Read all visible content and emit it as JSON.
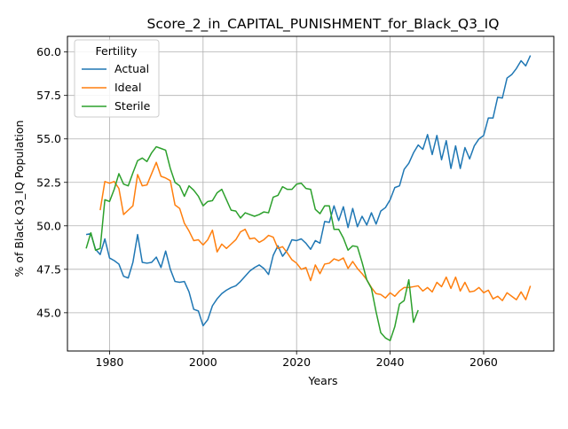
{
  "chart_data": {
    "type": "line",
    "title": "Score_2_in_CAPITAL_PUNISHMENT_for_Black_Q3_IQ",
    "xlabel": "Years",
    "ylabel": "% of Black Q3_IQ Population",
    "xlim": [
      1971,
      2075
    ],
    "ylim": [
      42.8,
      60.9
    ],
    "xticks": [
      1980,
      2000,
      2020,
      2040,
      2060
    ],
    "yticks": [
      45.0,
      47.5,
      50.0,
      52.5,
      55.0,
      57.5,
      60.0
    ],
    "grid": true,
    "legend": {
      "title": "Fertility",
      "position": "top-left"
    },
    "series": [
      {
        "name": "Actual",
        "color": "#1f77b4",
        "x": [
          1975,
          1976,
          1977,
          1978,
          1979,
          1980,
          1981,
          1982,
          1983,
          1984,
          1985,
          1986,
          1987,
          1988,
          1989,
          1990,
          1991,
          1992,
          1993,
          1994,
          1995,
          1996,
          1997,
          1998,
          1999,
          2000,
          2001,
          2002,
          2003,
          2004,
          2005,
          2006,
          2007,
          2008,
          2009,
          2010,
          2011,
          2012,
          2013,
          2014,
          2015,
          2016,
          2017,
          2018,
          2019,
          2020,
          2021,
          2022,
          2023,
          2024,
          2025,
          2026,
          2027,
          2028,
          2029,
          2030,
          2031,
          2032,
          2033,
          2034,
          2035,
          2036,
          2037,
          2038,
          2039,
          2040,
          2041,
          2042,
          2043,
          2044,
          2045,
          2046,
          2047,
          2048,
          2049,
          2050,
          2051,
          2052,
          2053,
          2054,
          2055,
          2056,
          2057,
          2058,
          2059,
          2060,
          2061,
          2062,
          2063,
          2064,
          2065,
          2066,
          2067,
          2068,
          2069,
          2070
        ],
        "y": [
          49.5,
          49.55,
          48.65,
          48.35,
          49.25,
          48.15,
          48.0,
          47.8,
          47.1,
          47.0,
          47.9,
          49.5,
          47.9,
          47.85,
          47.9,
          48.2,
          47.6,
          48.55,
          47.5,
          46.8,
          46.75,
          46.8,
          46.2,
          45.2,
          45.1,
          44.25,
          44.6,
          45.4,
          45.8,
          46.1,
          46.3,
          46.45,
          46.55,
          46.8,
          47.1,
          47.4,
          47.6,
          47.75,
          47.55,
          47.2,
          48.3,
          48.85,
          48.25,
          48.6,
          49.2,
          49.15,
          49.25,
          49.0,
          48.65,
          49.15,
          49.0,
          50.25,
          50.2,
          51.15,
          50.3,
          51.1,
          49.9,
          51.0,
          49.95,
          50.55,
          50.05,
          50.75,
          50.1,
          50.85,
          51.05,
          51.5,
          52.2,
          52.3,
          53.25,
          53.6,
          54.2,
          54.65,
          54.4,
          55.25,
          54.1,
          55.2,
          53.8,
          54.9,
          53.3,
          54.6,
          53.3,
          54.5,
          53.85,
          54.6,
          55.0,
          55.2,
          56.2,
          56.2,
          57.4,
          57.35,
          58.5,
          58.7,
          59.05,
          59.5,
          59.2,
          59.8
        ]
      },
      {
        "name": "Ideal",
        "color": "#ff7f0e",
        "x": [
          1978,
          1979,
          1980,
          1981,
          1982,
          1983,
          1984,
          1985,
          1986,
          1987,
          1988,
          1989,
          1990,
          1991,
          1992,
          1993,
          1994,
          1995,
          1996,
          1997,
          1998,
          1999,
          2000,
          2001,
          2002,
          2003,
          2004,
          2005,
          2006,
          2007,
          2008,
          2009,
          2010,
          2011,
          2012,
          2013,
          2014,
          2015,
          2016,
          2017,
          2018,
          2019,
          2020,
          2021,
          2022,
          2023,
          2024,
          2025,
          2026,
          2027,
          2028,
          2029,
          2030,
          2031,
          2032,
          2033,
          2034,
          2035,
          2036,
          2037,
          2038,
          2039,
          2040,
          2041,
          2042,
          2043,
          2044,
          2045,
          2046,
          2047,
          2048,
          2049,
          2050,
          2051,
          2052,
          2053,
          2054,
          2055,
          2056,
          2057,
          2058,
          2059,
          2060,
          2061,
          2062,
          2063,
          2064,
          2065,
          2066,
          2067,
          2068,
          2069,
          2070
        ],
        "y": [
          50.9,
          52.55,
          52.45,
          52.55,
          52.15,
          50.65,
          50.9,
          51.15,
          52.95,
          52.3,
          52.35,
          53.0,
          53.65,
          52.85,
          52.75,
          52.6,
          51.2,
          51.0,
          50.15,
          49.7,
          49.15,
          49.2,
          48.9,
          49.2,
          49.75,
          48.5,
          48.95,
          48.7,
          48.95,
          49.2,
          49.65,
          49.8,
          49.25,
          49.3,
          49.05,
          49.2,
          49.45,
          49.35,
          48.7,
          48.8,
          48.45,
          48.05,
          47.85,
          47.5,
          47.6,
          46.85,
          47.75,
          47.25,
          47.8,
          47.85,
          48.1,
          48.0,
          48.15,
          47.55,
          47.95,
          47.55,
          47.25,
          46.9,
          46.45,
          46.1,
          46.05,
          45.85,
          46.15,
          45.95,
          46.25,
          46.45,
          46.45,
          46.5,
          46.55,
          46.25,
          46.45,
          46.2,
          46.75,
          46.5,
          47.05,
          46.4,
          47.05,
          46.25,
          46.75,
          46.2,
          46.25,
          46.45,
          46.15,
          46.3,
          45.8,
          45.95,
          45.7,
          46.15,
          45.95,
          45.75,
          46.2,
          45.75,
          46.55
        ]
      },
      {
        "name": "Sterile",
        "color": "#2ca02c",
        "x": [
          1975,
          1976,
          1977,
          1978,
          1979,
          1980,
          1981,
          1982,
          1983,
          1984,
          1985,
          1986,
          1987,
          1988,
          1989,
          1990,
          1991,
          1992,
          1993,
          1994,
          1995,
          1996,
          1997,
          1998,
          1999,
          2000,
          2001,
          2002,
          2003,
          2004,
          2005,
          2006,
          2007,
          2008,
          2009,
          2010,
          2011,
          2012,
          2013,
          2014,
          2015,
          2016,
          2017,
          2018,
          2019,
          2020,
          2021,
          2022,
          2023,
          2024,
          2025,
          2026,
          2027,
          2028,
          2029,
          2030,
          2031,
          2032,
          2033,
          2034,
          2035,
          2036,
          2037,
          2038,
          2039,
          2040,
          2041,
          2042,
          2043,
          2044,
          2045,
          2046,
          2047
        ],
        "y": [
          48.7,
          49.6,
          48.6,
          48.7,
          51.5,
          51.4,
          52.1,
          53.0,
          52.4,
          52.3,
          53.05,
          53.75,
          53.9,
          53.7,
          54.2,
          54.55,
          54.45,
          54.35,
          53.3,
          52.5,
          52.3,
          51.7,
          52.3,
          52.05,
          51.7,
          51.15,
          51.4,
          51.45,
          51.9,
          52.1,
          51.5,
          50.9,
          50.85,
          50.45,
          50.75,
          50.65,
          50.55,
          50.65,
          50.8,
          50.75,
          51.65,
          51.75,
          52.25,
          52.1,
          52.1,
          52.4,
          52.45,
          52.15,
          52.1,
          50.95,
          50.7,
          51.15,
          51.15,
          49.8,
          49.8,
          49.3,
          48.6,
          48.85,
          48.8,
          47.9,
          46.9,
          46.4,
          45.05,
          43.85,
          43.55,
          43.4,
          44.2,
          45.5,
          45.7,
          46.9,
          44.45,
          45.15,
          null
        ]
      }
    ]
  }
}
